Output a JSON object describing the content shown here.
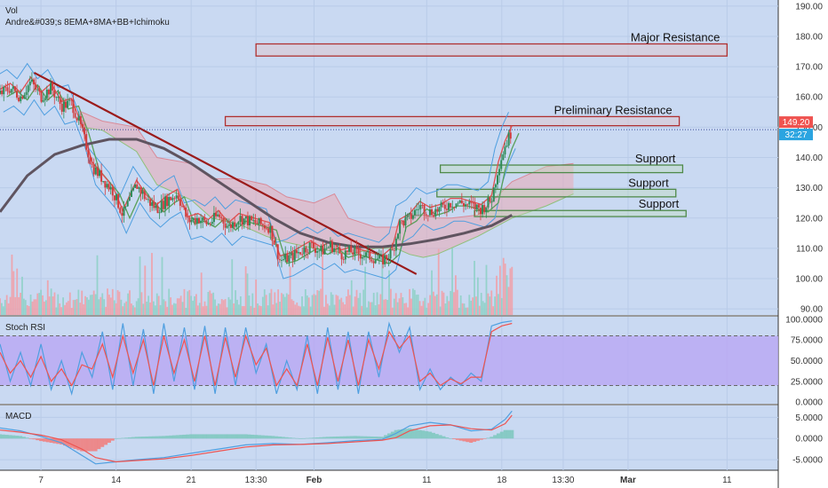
{
  "header": {
    "line1": "Vol",
    "line2": "Andre&#039;s 8EMA+8MA+BB+Ichimoku"
  },
  "colors": {
    "panel_bg": "#c9d9f2",
    "grid": "#b9cbe8",
    "price_label_bg": "#ef5350",
    "time_label_bg": "#2ba4e0",
    "rsi_band": "#b9a6f3",
    "resistance_stroke": "#b03030",
    "support_stroke": "#4f8a4a",
    "trendline": "#9b1b1b",
    "ma_dark": "#5f5460",
    "ema_red": "#e05050",
    "ema_green": "#5aa05a",
    "bb_blue": "#4f9fe0",
    "cloud_pink": "#e9a9b5",
    "cloud_green": "#b8d8a8"
  },
  "chart_data": [
    {
      "type": "candlestick",
      "title": "",
      "ylim": [
        88,
        192
      ],
      "y_ticks": [
        "190.00",
        "180.00",
        "170.00",
        "160.00",
        "150.00",
        "140.00",
        "130.00",
        "120.00",
        "110.00",
        "100.00",
        "90.00"
      ],
      "y_tick_values": [
        190,
        180,
        170,
        160,
        150,
        140,
        130,
        120,
        110,
        100,
        90
      ],
      "x_ticks": [
        "7",
        "14",
        "21",
        "13:30",
        "Feb",
        "11",
        "18",
        "13:30",
        "Mar",
        "11"
      ],
      "x_tick_values": [
        12,
        34,
        56,
        75,
        92,
        125,
        147,
        165,
        184,
        213
      ],
      "x_range": [
        0,
        228
      ],
      "last_price_label": "149.20",
      "last_price_value": 149.2,
      "time_label": "32:27",
      "close_series": [
        [
          0,
          161
        ],
        [
          3,
          163
        ],
        [
          6,
          160
        ],
        [
          9,
          165
        ],
        [
          12,
          160
        ],
        [
          15,
          163
        ],
        [
          18,
          157
        ],
        [
          21,
          158
        ],
        [
          24,
          149
        ],
        [
          27,
          137
        ],
        [
          30,
          133
        ],
        [
          33,
          129
        ],
        [
          36,
          121
        ],
        [
          38,
          126
        ],
        [
          40,
          131
        ],
        [
          43,
          126
        ],
        [
          46,
          123
        ],
        [
          49,
          126
        ],
        [
          52,
          128
        ],
        [
          55,
          119
        ],
        [
          58,
          120
        ],
        [
          61,
          118
        ],
        [
          64,
          121
        ],
        [
          67,
          117
        ],
        [
          70,
          120
        ],
        [
          73,
          119
        ],
        [
          76,
          118
        ],
        [
          79,
          117
        ],
        [
          82,
          106
        ],
        [
          85,
          107
        ],
        [
          88,
          109
        ],
        [
          91,
          111
        ],
        [
          94,
          109
        ],
        [
          97,
          111
        ],
        [
          100,
          108
        ],
        [
          103,
          109
        ],
        [
          106,
          108
        ],
        [
          109,
          107
        ],
        [
          112,
          106
        ],
        [
          115,
          109
        ],
        [
          117,
          118
        ],
        [
          120,
          120
        ],
        [
          123,
          124
        ],
        [
          126,
          122
        ],
        [
          129,
          123
        ],
        [
          132,
          125
        ],
        [
          135,
          125
        ],
        [
          138,
          124
        ],
        [
          141,
          123
        ],
        [
          144,
          126
        ],
        [
          146,
          137
        ],
        [
          148,
          144
        ],
        [
          150,
          149
        ]
      ],
      "annotations": [
        {
          "label": "Major Resistance",
          "y_low": 173.5,
          "y_high": 177.5,
          "x_start": 75,
          "x_end": 213
        },
        {
          "label": "Preliminary Resistance",
          "y_low": 150.5,
          "y_high": 153.5,
          "x_start": 66,
          "x_end": 199
        },
        {
          "label": "Support",
          "y_low": 135,
          "y_high": 137.5,
          "x_start": 129,
          "x_end": 200
        },
        {
          "label": "Support",
          "y_low": 127,
          "y_high": 129.5,
          "x_start": 128,
          "x_end": 198
        },
        {
          "label": "Support",
          "y_low": 120.5,
          "y_high": 122.5,
          "x_start": 139,
          "x_end": 201
        }
      ],
      "trendline": {
        "from": [
          10,
          168
        ],
        "to": [
          122,
          101.5
        ]
      },
      "ma_series": [
        [
          0,
          122
        ],
        [
          8,
          134
        ],
        [
          16,
          141
        ],
        [
          24,
          144
        ],
        [
          32,
          146
        ],
        [
          40,
          146
        ],
        [
          48,
          143
        ],
        [
          56,
          138
        ],
        [
          64,
          132
        ],
        [
          72,
          126
        ],
        [
          80,
          120
        ],
        [
          88,
          115
        ],
        [
          96,
          112
        ],
        [
          104,
          110.5
        ],
        [
          112,
          110.5
        ],
        [
          120,
          111.5
        ],
        [
          128,
          113
        ],
        [
          136,
          115
        ],
        [
          144,
          117.5
        ],
        [
          150,
          121
        ]
      ],
      "cloud_top": [
        [
          24,
          155
        ],
        [
          30,
          152
        ],
        [
          40,
          150
        ],
        [
          46,
          140
        ],
        [
          56,
          138
        ],
        [
          62,
          133
        ],
        [
          70,
          133
        ],
        [
          78,
          131
        ],
        [
          84,
          127
        ],
        [
          92,
          125
        ],
        [
          98,
          128
        ],
        [
          102,
          120
        ],
        [
          110,
          117
        ],
        [
          116,
          117
        ],
        [
          120,
          121
        ],
        [
          124,
          121
        ],
        [
          128,
          120
        ],
        [
          132,
          120
        ],
        [
          140,
          121
        ],
        [
          150,
          132
        ],
        [
          160,
          137
        ],
        [
          168,
          138
        ]
      ],
      "cloud_bottom": [
        [
          24,
          150
        ],
        [
          30,
          149
        ],
        [
          40,
          142
        ],
        [
          46,
          131
        ],
        [
          56,
          126
        ],
        [
          62,
          120
        ],
        [
          70,
          118
        ],
        [
          78,
          114
        ],
        [
          84,
          112
        ],
        [
          92,
          110
        ],
        [
          98,
          109
        ],
        [
          102,
          108
        ],
        [
          110,
          110
        ],
        [
          116,
          110
        ],
        [
          120,
          108
        ],
        [
          124,
          107
        ],
        [
          128,
          108
        ],
        [
          132,
          110
        ],
        [
          140,
          114
        ],
        [
          150,
          120
        ],
        [
          160,
          124
        ],
        [
          168,
          128
        ]
      ]
    },
    {
      "type": "line",
      "title": "Stoch RSI",
      "ylim": [
        -2,
        103
      ],
      "y_ticks": [
        "100.0000",
        "75.0000",
        "50.0000",
        "25.0000",
        "0.0000"
      ],
      "y_tick_values": [
        100,
        75,
        50,
        25,
        0
      ],
      "band": [
        20,
        80
      ],
      "series": [
        {
          "name": "",
          "color": "#4f9fe0",
          "values": [
            [
              0,
              70
            ],
            [
              3,
              25
            ],
            [
              6,
              60
            ],
            [
              9,
              20
            ],
            [
              12,
              70
            ],
            [
              15,
              15
            ],
            [
              18,
              50
            ],
            [
              21,
              10
            ],
            [
              24,
              60
            ],
            [
              27,
              30
            ],
            [
              30,
              85
            ],
            [
              33,
              15
            ],
            [
              36,
              95
            ],
            [
              39,
              20
            ],
            [
              42,
              88
            ],
            [
              45,
              10
            ],
            [
              48,
              95
            ],
            [
              51,
              25
            ],
            [
              54,
              90
            ],
            [
              57,
              15
            ],
            [
              60,
              92
            ],
            [
              63,
              10
            ],
            [
              66,
              90
            ],
            [
              69,
              20
            ],
            [
              72,
              90
            ],
            [
              75,
              35
            ],
            [
              78,
              70
            ],
            [
              81,
              10
            ],
            [
              84,
              50
            ],
            [
              87,
              15
            ],
            [
              90,
              80
            ],
            [
              93,
              10
            ],
            [
              96,
              90
            ],
            [
              99,
              15
            ],
            [
              102,
              85
            ],
            [
              105,
              10
            ],
            [
              108,
              85
            ],
            [
              111,
              30
            ],
            [
              114,
              95
            ],
            [
              117,
              60
            ],
            [
              120,
              90
            ],
            [
              123,
              15
            ],
            [
              126,
              40
            ],
            [
              129,
              15
            ],
            [
              132,
              30
            ],
            [
              135,
              20
            ],
            [
              138,
              35
            ],
            [
              141,
              25
            ],
            [
              144,
              92
            ],
            [
              147,
              96
            ],
            [
              150,
              98
            ]
          ]
        },
        {
          "name": "",
          "color": "#ef5350",
          "values": [
            [
              0,
              60
            ],
            [
              3,
              35
            ],
            [
              6,
              50
            ],
            [
              9,
              30
            ],
            [
              12,
              55
            ],
            [
              15,
              25
            ],
            [
              18,
              40
            ],
            [
              21,
              20
            ],
            [
              24,
              45
            ],
            [
              27,
              40
            ],
            [
              30,
              70
            ],
            [
              33,
              30
            ],
            [
              36,
              80
            ],
            [
              39,
              35
            ],
            [
              42,
              75
            ],
            [
              45,
              20
            ],
            [
              48,
              80
            ],
            [
              51,
              35
            ],
            [
              54,
              75
            ],
            [
              57,
              25
            ],
            [
              60,
              80
            ],
            [
              63,
              20
            ],
            [
              66,
              78
            ],
            [
              69,
              30
            ],
            [
              72,
              80
            ],
            [
              75,
              45
            ],
            [
              78,
              65
            ],
            [
              81,
              20
            ],
            [
              84,
              40
            ],
            [
              87,
              20
            ],
            [
              90,
              70
            ],
            [
              93,
              20
            ],
            [
              96,
              78
            ],
            [
              99,
              25
            ],
            [
              102,
              75
            ],
            [
              105,
              20
            ],
            [
              108,
              75
            ],
            [
              111,
              40
            ],
            [
              114,
              85
            ],
            [
              117,
              65
            ],
            [
              120,
              80
            ],
            [
              123,
              25
            ],
            [
              126,
              35
            ],
            [
              129,
              20
            ],
            [
              132,
              28
            ],
            [
              135,
              22
            ],
            [
              138,
              30
            ],
            [
              141,
              30
            ],
            [
              144,
              85
            ],
            [
              147,
              92
            ],
            [
              150,
              95
            ]
          ]
        }
      ]
    },
    {
      "type": "line",
      "title": "MACD",
      "ylim": [
        -7.5,
        7.8
      ],
      "y_ticks": [
        "5.0000",
        "0.0000",
        "-5.0000"
      ],
      "y_tick_values": [
        5,
        0,
        -5
      ],
      "series": [
        {
          "name": "",
          "color": "#4f9fe0",
          "values": [
            [
              0,
              2.5
            ],
            [
              6,
              1.8
            ],
            [
              12,
              0.5
            ],
            [
              18,
              -1
            ],
            [
              24,
              -4
            ],
            [
              28,
              -6
            ],
            [
              34,
              -5.5
            ],
            [
              40,
              -5
            ],
            [
              48,
              -4.5
            ],
            [
              56,
              -3.5
            ],
            [
              64,
              -2.5
            ],
            [
              72,
              -1.5
            ],
            [
              80,
              -1.2
            ],
            [
              88,
              -1.4
            ],
            [
              96,
              -1
            ],
            [
              104,
              -0.5
            ],
            [
              112,
              -0.2
            ],
            [
              116,
              1.2
            ],
            [
              120,
              3
            ],
            [
              126,
              3.8
            ],
            [
              132,
              3.2
            ],
            [
              138,
              1.8
            ],
            [
              144,
              2.2
            ],
            [
              148,
              4.5
            ],
            [
              150,
              6.5
            ]
          ]
        },
        {
          "name": "",
          "color": "#ef5350",
          "values": [
            [
              0,
              2
            ],
            [
              6,
              1.5
            ],
            [
              12,
              0.8
            ],
            [
              18,
              -0.3
            ],
            [
              24,
              -2.5
            ],
            [
              28,
              -4.5
            ],
            [
              34,
              -5.5
            ],
            [
              40,
              -5.2
            ],
            [
              48,
              -4.8
            ],
            [
              56,
              -4
            ],
            [
              64,
              -3
            ],
            [
              72,
              -2
            ],
            [
              80,
              -1.5
            ],
            [
              88,
              -1.4
            ],
            [
              96,
              -1.2
            ],
            [
              104,
              -0.8
            ],
            [
              112,
              -0.4
            ],
            [
              116,
              0.2
            ],
            [
              120,
              1.8
            ],
            [
              126,
              3
            ],
            [
              132,
              3.2
            ],
            [
              138,
              2.3
            ],
            [
              144,
              2
            ],
            [
              148,
              3.5
            ],
            [
              150,
              5.5
            ]
          ]
        }
      ]
    }
  ]
}
